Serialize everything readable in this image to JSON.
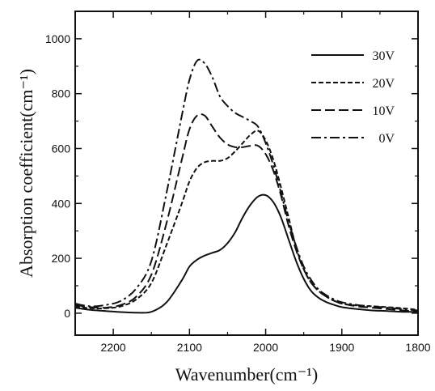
{
  "chart_data": {
    "type": "line",
    "xlabel": "Wavenumber(cm⁻¹)",
    "ylabel": "Absorption coefficient(cm⁻¹)",
    "xlim": [
      2250,
      1800
    ],
    "ylim": [
      -80,
      1100
    ],
    "x_reversed": true,
    "grid": false,
    "legend_position": "top-right",
    "x_ticks": [
      2200,
      2100,
      2000,
      1900,
      1800
    ],
    "y_ticks": [
      0,
      200,
      400,
      600,
      800,
      1000
    ],
    "series": [
      {
        "name": "30V",
        "dash": "solid",
        "x": [
          2250,
          2230,
          2210,
          2190,
          2170,
          2150,
          2130,
          2110,
          2100,
          2090,
          2080,
          2070,
          2060,
          2050,
          2040,
          2030,
          2020,
          2010,
          2000,
          1990,
          1980,
          1970,
          1960,
          1950,
          1940,
          1930,
          1920,
          1910,
          1900,
          1880,
          1860,
          1840,
          1820,
          1800
        ],
        "y": [
          20,
          12,
          8,
          4,
          2,
          5,
          40,
          120,
          170,
          195,
          210,
          220,
          230,
          255,
          295,
          350,
          395,
          425,
          430,
          405,
          350,
          270,
          190,
          125,
          80,
          55,
          40,
          30,
          22,
          15,
          10,
          8,
          5,
          5
        ]
      },
      {
        "name": "20V",
        "dash": "6,3",
        "x": [
          2250,
          2230,
          2210,
          2190,
          2170,
          2150,
          2130,
          2110,
          2100,
          2090,
          2080,
          2070,
          2060,
          2050,
          2040,
          2030,
          2020,
          2010,
          2000,
          1990,
          1980,
          1970,
          1960,
          1950,
          1940,
          1930,
          1920,
          1910,
          1900,
          1880,
          1860,
          1840,
          1820,
          1800
        ],
        "y": [
          25,
          18,
          18,
          25,
          50,
          110,
          250,
          400,
          480,
          530,
          550,
          555,
          555,
          565,
          590,
          620,
          650,
          665,
          630,
          560,
          460,
          350,
          240,
          160,
          110,
          80,
          60,
          45,
          35,
          28,
          25,
          22,
          18,
          12
        ]
      },
      {
        "name": "10V",
        "dash": "12,5",
        "x": [
          2250,
          2230,
          2210,
          2190,
          2170,
          2150,
          2130,
          2110,
          2100,
          2090,
          2080,
          2070,
          2060,
          2050,
          2040,
          2030,
          2020,
          2010,
          2000,
          1990,
          1980,
          1970,
          1960,
          1950,
          1940,
          1930,
          1920,
          1910,
          1900,
          1880,
          1860,
          1840,
          1820,
          1800
        ],
        "y": [
          30,
          22,
          20,
          30,
          60,
          140,
          330,
          560,
          670,
          720,
          720,
          680,
          640,
          615,
          605,
          605,
          610,
          610,
          580,
          520,
          430,
          320,
          230,
          160,
          110,
          80,
          60,
          45,
          35,
          25,
          20,
          15,
          10,
          5
        ]
      },
      {
        "name": "0V",
        "dash": "12,4,3,4",
        "x": [
          2250,
          2230,
          2210,
          2190,
          2170,
          2150,
          2130,
          2110,
          2100,
          2090,
          2080,
          2070,
          2060,
          2050,
          2040,
          2030,
          2020,
          2010,
          2000,
          1990,
          1980,
          1970,
          1960,
          1950,
          1940,
          1930,
          1920,
          1910,
          1900,
          1880,
          1860,
          1840,
          1820,
          1800
        ],
        "y": [
          35,
          25,
          30,
          45,
          90,
          190,
          440,
          720,
          850,
          920,
          910,
          860,
          790,
          755,
          730,
          715,
          700,
          680,
          620,
          540,
          440,
          335,
          245,
          170,
          120,
          85,
          65,
          50,
          40,
          30,
          25,
          20,
          15,
          10
        ]
      }
    ]
  }
}
